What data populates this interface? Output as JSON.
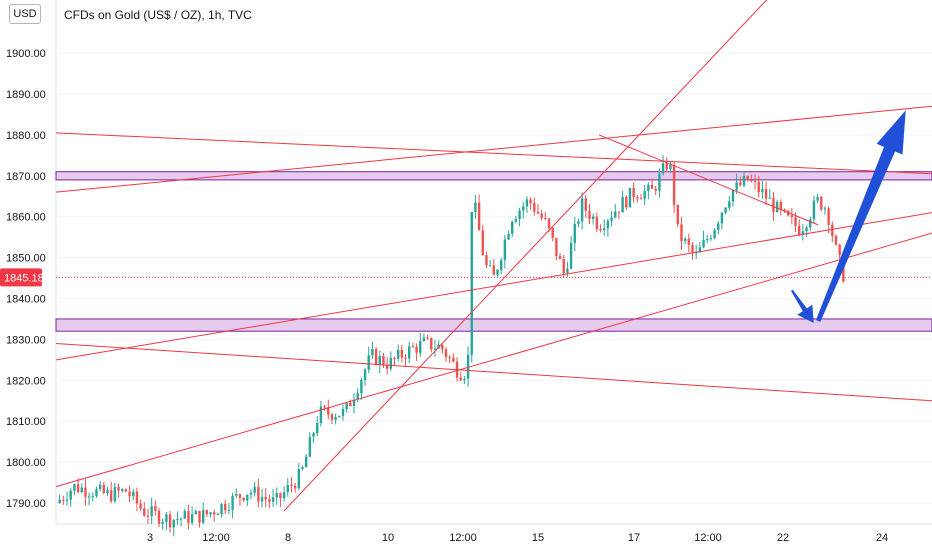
{
  "header": {
    "currency": "USD",
    "title": "CFDs on Gold (US$ / OZ), 1h, TVC"
  },
  "colors": {
    "bull": "#26a69a",
    "bear": "#ef5350",
    "trendline": "#f23645",
    "zone_fill": "#e1bee7",
    "zone_border": "#7b1fa2",
    "arrow": "#2150d8",
    "price_tag": "#f23645",
    "grid": "#f0f3fa",
    "axis_text": "#131722"
  },
  "chart_data": {
    "type": "candlestick",
    "symbol": "CFDs on Gold (US$ / OZ)",
    "timeframe": "1h",
    "source": "TVC",
    "yaxis": {
      "ticks": [
        "1790.00",
        "1800.00",
        "1810.00",
        "1820.00",
        "1830.00",
        "1840.00",
        "1850.00",
        "1860.00",
        "1870.00",
        "1880.00",
        "1890.00",
        "1900.00"
      ],
      "tick_values": [
        1790,
        1800,
        1810,
        1820,
        1830,
        1840,
        1850,
        1860,
        1870,
        1880,
        1890,
        1900
      ],
      "ylim": [
        1786,
        1912
      ]
    },
    "xaxis": {
      "ticks": [
        "3",
        "12:00",
        "8",
        "10",
        "12:00",
        "15",
        "17",
        "12:00",
        "22",
        "24"
      ],
      "xlim": [
        0,
        100
      ]
    },
    "current_price": "1845.18",
    "price_path": [
      [
        0,
        1790
      ],
      [
        2,
        1794
      ],
      [
        6,
        1792
      ],
      [
        8,
        1793
      ],
      [
        10,
        1788
      ],
      [
        13,
        1786
      ],
      [
        17,
        1787
      ],
      [
        22,
        1793
      ],
      [
        25,
        1790
      ],
      [
        28,
        1797
      ],
      [
        30,
        1812
      ],
      [
        33,
        1812
      ],
      [
        36,
        1826
      ],
      [
        38,
        1824
      ],
      [
        40,
        1827
      ],
      [
        42,
        1829
      ],
      [
        44,
        1828
      ],
      [
        46,
        1822
      ],
      [
        47,
        1822
      ],
      [
        47.5,
        1866
      ],
      [
        49,
        1848
      ],
      [
        50,
        1845
      ],
      [
        52,
        1860
      ],
      [
        54,
        1864
      ],
      [
        56,
        1858
      ],
      [
        58,
        1846
      ],
      [
        60,
        1863
      ],
      [
        62,
        1858
      ],
      [
        64,
        1862
      ],
      [
        66,
        1866
      ],
      [
        68,
        1866
      ],
      [
        70,
        1874
      ],
      [
        71,
        1856
      ],
      [
        73,
        1850
      ],
      [
        75,
        1857
      ],
      [
        77,
        1866
      ],
      [
        79,
        1869
      ],
      [
        81,
        1865
      ],
      [
        83,
        1860
      ],
      [
        85,
        1857
      ],
      [
        87,
        1864
      ],
      [
        88,
        1862
      ],
      [
        89,
        1852
      ],
      [
        90,
        1845
      ]
    ],
    "zones": [
      {
        "from": 1869,
        "to": 1871
      },
      {
        "from": 1832,
        "to": 1835
      }
    ],
    "trendlines": [
      [
        [
          0,
          1880.5
        ],
        [
          100,
          1870.5
        ]
      ],
      [
        [
          0,
          1866
        ],
        [
          100,
          1887
        ]
      ],
      [
        [
          62,
          1880
        ],
        [
          87,
          1858
        ]
      ],
      [
        [
          0,
          1825
        ],
        [
          100,
          1861
        ]
      ],
      [
        [
          0,
          1794
        ],
        [
          100,
          1856
        ]
      ],
      [
        [
          0,
          1829
        ],
        [
          100,
          1815
        ]
      ],
      [
        [
          26,
          1788
        ],
        [
          82,
          1915
        ]
      ]
    ],
    "annotations": [
      {
        "type": "arrow",
        "from": [
          84,
          1842
        ],
        "to": [
          86.5,
          1834
        ]
      },
      {
        "type": "arrow",
        "from": [
          87,
          1834.5
        ],
        "to": [
          97,
          1886
        ]
      }
    ]
  }
}
